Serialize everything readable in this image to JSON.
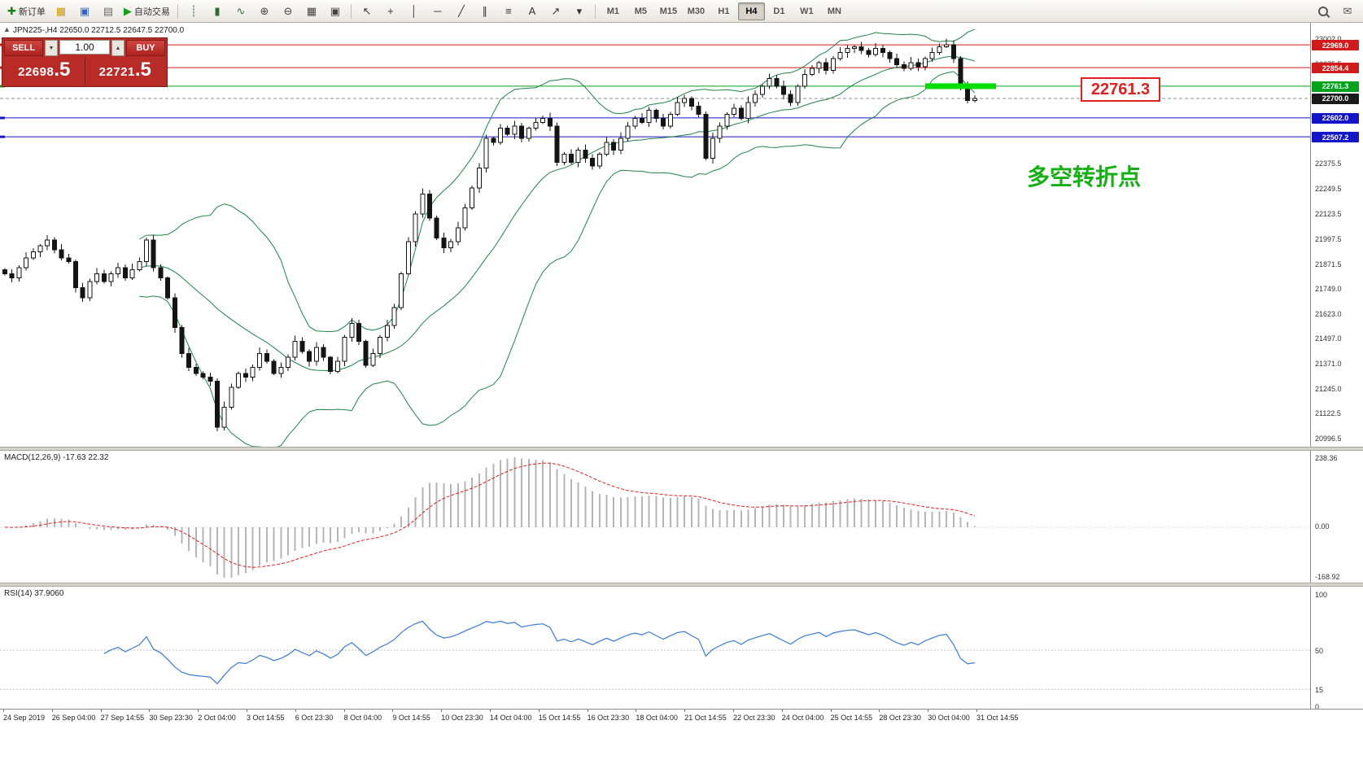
{
  "toolbar": {
    "left_icons": [
      {
        "name": "new-order-button",
        "glyph": "✚",
        "color": "#12840f",
        "label": "新订单"
      },
      {
        "name": "chart-profiles-icon",
        "glyph": "▦",
        "color": "#d09b00"
      },
      {
        "name": "market-watch-icon",
        "glyph": "▣",
        "color": "#2f62c4"
      },
      {
        "name": "data-window-icon",
        "glyph": "▤",
        "color": "#6f6b63"
      },
      {
        "name": "autotrading-button",
        "glyph": "▶",
        "color": "#15a015",
        "label": "自动交易"
      }
    ],
    "chart_icons": [
      {
        "name": "bar-chart-icon",
        "glyph": "┊",
        "color": "#2f6b2f"
      },
      {
        "name": "candlestick-chart-icon",
        "glyph": "▮",
        "color": "#2f6b2f"
      },
      {
        "name": "line-chart-icon",
        "glyph": "∿",
        "color": "#2f6b2f"
      },
      {
        "name": "zoom-in-icon",
        "glyph": "⊕",
        "color": "#444444"
      },
      {
        "name": "zoom-out-icon",
        "glyph": "⊖",
        "color": "#444444"
      },
      {
        "name": "tile-windows-icon",
        "glyph": "▦",
        "color": "#444444"
      },
      {
        "name": "indicators-icon",
        "glyph": "▣",
        "color": "#444444"
      }
    ],
    "draw_icons": [
      {
        "name": "cursor-icon",
        "glyph": "↖",
        "color": "#333333"
      },
      {
        "name": "crosshair-icon",
        "glyph": "+",
        "color": "#333333"
      },
      {
        "name": "vertical-line-icon",
        "glyph": "│",
        "color": "#333333"
      },
      {
        "name": "horizontal-line-icon",
        "glyph": "─",
        "color": "#333333"
      },
      {
        "name": "trendline-icon",
        "glyph": "╱",
        "color": "#333333"
      },
      {
        "name": "channel-icon",
        "glyph": "∥",
        "color": "#333333"
      },
      {
        "name": "fibonacci-icon",
        "glyph": "≡",
        "color": "#333333"
      },
      {
        "name": "text-icon",
        "glyph": "A",
        "color": "#333333"
      },
      {
        "name": "arrow-tool-icon",
        "glyph": "↗",
        "color": "#333333"
      },
      {
        "name": "shapes-dropdown-icon",
        "glyph": "▾",
        "color": "#333333"
      }
    ],
    "timeframes": [
      "M1",
      "M5",
      "M15",
      "M30",
      "H1",
      "H4",
      "D1",
      "W1",
      "MN"
    ],
    "active_timeframe": "H4",
    "right_icons": [
      {
        "name": "search-icon",
        "css": "search"
      },
      {
        "name": "community-icon",
        "glyph": "✉",
        "color": "#555555"
      }
    ]
  },
  "chart": {
    "collapse_glyph": "▲",
    "header": "JPN225-,H4  22650.0 22712.5 22647.5 22700.0"
  },
  "trade_panel": {
    "sell_label": "SELL",
    "buy_label": "BUY",
    "volume": "1.00",
    "spin_down": "▼",
    "spin_up": "▲",
    "sell_price_main": "22698",
    "sell_price_frac": ".5",
    "buy_price_main": "22721",
    "buy_price_frac": ".5"
  },
  "annotations": {
    "price_label": "22761.3",
    "turning_point": "多空转折点"
  },
  "price_axis": {
    "ticks": [
      {
        "label": "23002.0",
        "price": 23002.0
      },
      {
        "label": "22875.5",
        "price": 22875.5
      },
      {
        "label": "22375.5",
        "price": 22375.5
      },
      {
        "label": "22249.5",
        "price": 22249.5
      },
      {
        "label": "22123.5",
        "price": 22123.5
      },
      {
        "label": "21997.5",
        "price": 21997.5
      },
      {
        "label": "21871.5",
        "price": 21871.5
      },
      {
        "label": "21749.0",
        "price": 21749.0
      },
      {
        "label": "21623.0",
        "price": 21623.0
      },
      {
        "label": "21497.0",
        "price": 21497.0
      },
      {
        "label": "21371.0",
        "price": 21371.0
      },
      {
        "label": "21245.0",
        "price": 21245.0
      },
      {
        "label": "21122.5",
        "price": 21122.5
      },
      {
        "label": "20996.5",
        "price": 20996.5
      }
    ],
    "badges": [
      {
        "label": "22969.0",
        "price": 22969.0,
        "color": "#d11a1a"
      },
      {
        "label": "22854.4",
        "price": 22854.4,
        "color": "#d11a1a"
      },
      {
        "label": "22761.3",
        "price": 22761.3,
        "color": "#00a41b"
      },
      {
        "label": "22700.0",
        "price": 22700.0,
        "color": "#1a1a1a"
      },
      {
        "label": "22602.0",
        "price": 22602.0,
        "color": "#1414c8"
      },
      {
        "label": "22507.2",
        "price": 22507.2,
        "color": "#1414c8"
      }
    ]
  },
  "macd_panel": {
    "label": "MACD(12,26,9) -17.63 22.32",
    "axis_labels": [
      "238.36",
      "0.00",
      "-168.92"
    ]
  },
  "rsi_panel": {
    "label": "RSI(14) 37.9060",
    "axis_labels": [
      "100",
      "50",
      "15",
      "0"
    ]
  },
  "time_axis": {
    "labels": [
      "24 Sep 2019",
      "26 Sep 04:00",
      "27 Sep 14:55",
      "30 Sep 23:30",
      "2 Oct 04:00",
      "3 Oct 14:55",
      "6 Oct 23:30",
      "8 Oct 04:00",
      "9 Oct 14:55",
      "10 Oct 23:30",
      "14 Oct 04:00",
      "15 Oct 14:55",
      "16 Oct 23:30",
      "18 Oct 04:00",
      "21 Oct 14:55",
      "22 Oct 23:30",
      "24 Oct 04:00",
      "25 Oct 14:55",
      "28 Oct 23:30",
      "30 Oct 04:00",
      "31 Oct 14:55"
    ]
  },
  "chart_data": {
    "type": "candlestick",
    "symbol": "JPN225-",
    "timeframe": "H4",
    "header_ohlc": [
      22650.0,
      22712.5,
      22647.5,
      22700.0
    ],
    "ylim": [
      20996.5,
      23002.0
    ],
    "open_first": 21840,
    "closes": [
      21820,
      21800,
      21850,
      21900,
      21930,
      21960,
      21990,
      21940,
      21900,
      21880,
      21750,
      21700,
      21780,
      21820,
      21780,
      21820,
      21850,
      21800,
      21840,
      21880,
      21990,
      21850,
      21800,
      21700,
      21550,
      21420,
      21350,
      21320,
      21300,
      21280,
      21050,
      21150,
      21250,
      21320,
      21300,
      21350,
      21420,
      21380,
      21320,
      21350,
      21400,
      21480,
      21430,
      21380,
      21450,
      21400,
      21330,
      21380,
      21500,
      21570,
      21480,
      21360,
      21420,
      21500,
      21560,
      21650,
      21820,
      21980,
      22120,
      22220,
      22100,
      22000,
      21950,
      21980,
      22050,
      22150,
      22250,
      22350,
      22500,
      22480,
      22550,
      22520,
      22560,
      22500,
      22550,
      22580,
      22600,
      22560,
      22380,
      22420,
      22380,
      22440,
      22400,
      22360,
      22420,
      22480,
      22440,
      22500,
      22560,
      22600,
      22580,
      22640,
      22600,
      22560,
      22620,
      22680,
      22700,
      22660,
      22620,
      22400,
      22500,
      22560,
      22620,
      22650,
      22600,
      22680,
      22720,
      22760,
      22800,
      22760,
      22720,
      22680,
      22760,
      22820,
      22850,
      22880,
      22840,
      22900,
      22930,
      22950,
      22960,
      22940,
      22920,
      22950,
      22930,
      22900,
      22870,
      22850,
      22880,
      22860,
      22900,
      22930,
      22960,
      22970,
      22900,
      22760,
      22690,
      22700
    ],
    "hlines": [
      {
        "price": 22969.0,
        "color": "#d11a1a",
        "style": "solid"
      },
      {
        "price": 22854.4,
        "color": "#d11a1a",
        "style": "solid"
      },
      {
        "price": 22761.3,
        "color": "#00a41b",
        "style": "solid"
      },
      {
        "price": 22700.0,
        "color": "#909090",
        "style": "dashed"
      },
      {
        "price": 22602.0,
        "color": "#1414c8",
        "style": "solid"
      },
      {
        "price": 22507.2,
        "color": "#1414c8",
        "style": "solid"
      }
    ],
    "current_price": 22700.0,
    "highlight": {
      "price": 22761.3,
      "from_candle": 130,
      "to_candle": 140,
      "color": "#00dd00",
      "thickness": 7
    },
    "colors": {
      "bull": "#ffffff",
      "bear": "#141414",
      "outline": "#141414",
      "bollinger": "#1e8449",
      "macd_hist": "#b5b5b5",
      "macd_signal": "#e02020",
      "rsi_line": "#3a7bd5"
    },
    "indicators": {
      "bollinger": {
        "period": 20,
        "deviation": 2
      },
      "macd": {
        "fast": 12,
        "slow": 26,
        "signal": 9,
        "value": -17.63,
        "signal_value": 22.32,
        "axis_max": 238.36,
        "axis_min": -168.92
      },
      "rsi": {
        "period": 14,
        "value": 37.906,
        "levels": [
          50,
          15
        ],
        "range": [
          0,
          100
        ]
      }
    }
  }
}
